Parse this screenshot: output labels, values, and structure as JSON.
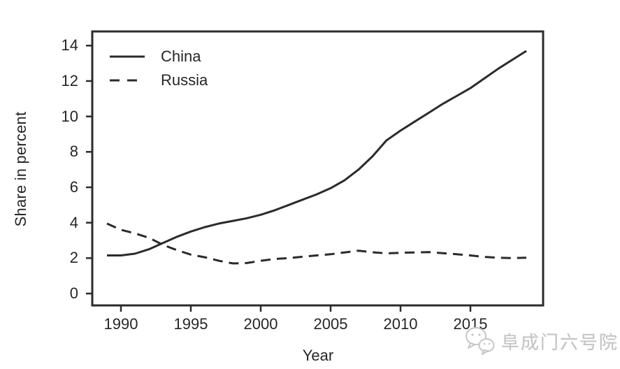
{
  "watermark": {
    "text": "阜成门六号院",
    "icon": "wechat-chat-bubbles-icon"
  },
  "colors": {
    "line": "#2b2b2b",
    "text": "#262626",
    "watermark": "#c3c3c3",
    "background": "#ffffff"
  },
  "chart_data": {
    "type": "line",
    "title": "",
    "xlabel": "Year",
    "ylabel": "Share in percent",
    "x": [
      1989,
      1990,
      1991,
      1992,
      1993,
      1994,
      1995,
      1996,
      1997,
      1998,
      1999,
      2000,
      2001,
      2002,
      2003,
      2004,
      2005,
      2006,
      2007,
      2008,
      2009,
      2010,
      2011,
      2012,
      2013,
      2014,
      2015,
      2016,
      2017,
      2018,
      2019
    ],
    "series": [
      {
        "name": "China",
        "style": "solid",
        "values": [
          2.15,
          2.15,
          2.25,
          2.5,
          2.85,
          3.2,
          3.5,
          3.75,
          3.95,
          4.1,
          4.25,
          4.45,
          4.7,
          5.0,
          5.3,
          5.6,
          5.95,
          6.4,
          7.0,
          7.75,
          8.65,
          9.2,
          9.7,
          10.2,
          10.7,
          11.15,
          11.6,
          12.15,
          12.7,
          13.2,
          13.7
        ]
      },
      {
        "name": "Russia",
        "style": "dashed",
        "values": [
          3.95,
          3.6,
          3.4,
          3.15,
          2.75,
          2.45,
          2.2,
          2.05,
          1.85,
          1.7,
          1.72,
          1.85,
          1.95,
          2.0,
          2.08,
          2.15,
          2.22,
          2.32,
          2.42,
          2.33,
          2.27,
          2.3,
          2.32,
          2.34,
          2.28,
          2.22,
          2.15,
          2.07,
          2.02,
          2.0,
          2.02
        ]
      }
    ],
    "xticks": [
      1990,
      1995,
      2000,
      2005,
      2010,
      2015
    ],
    "yticks": [
      0,
      2,
      4,
      6,
      8,
      10,
      12,
      14
    ],
    "xlim": [
      1987.95,
      2020.2
    ],
    "ylim": [
      -0.67,
      14.8
    ],
    "grid": false,
    "legend_position": "top-left"
  }
}
